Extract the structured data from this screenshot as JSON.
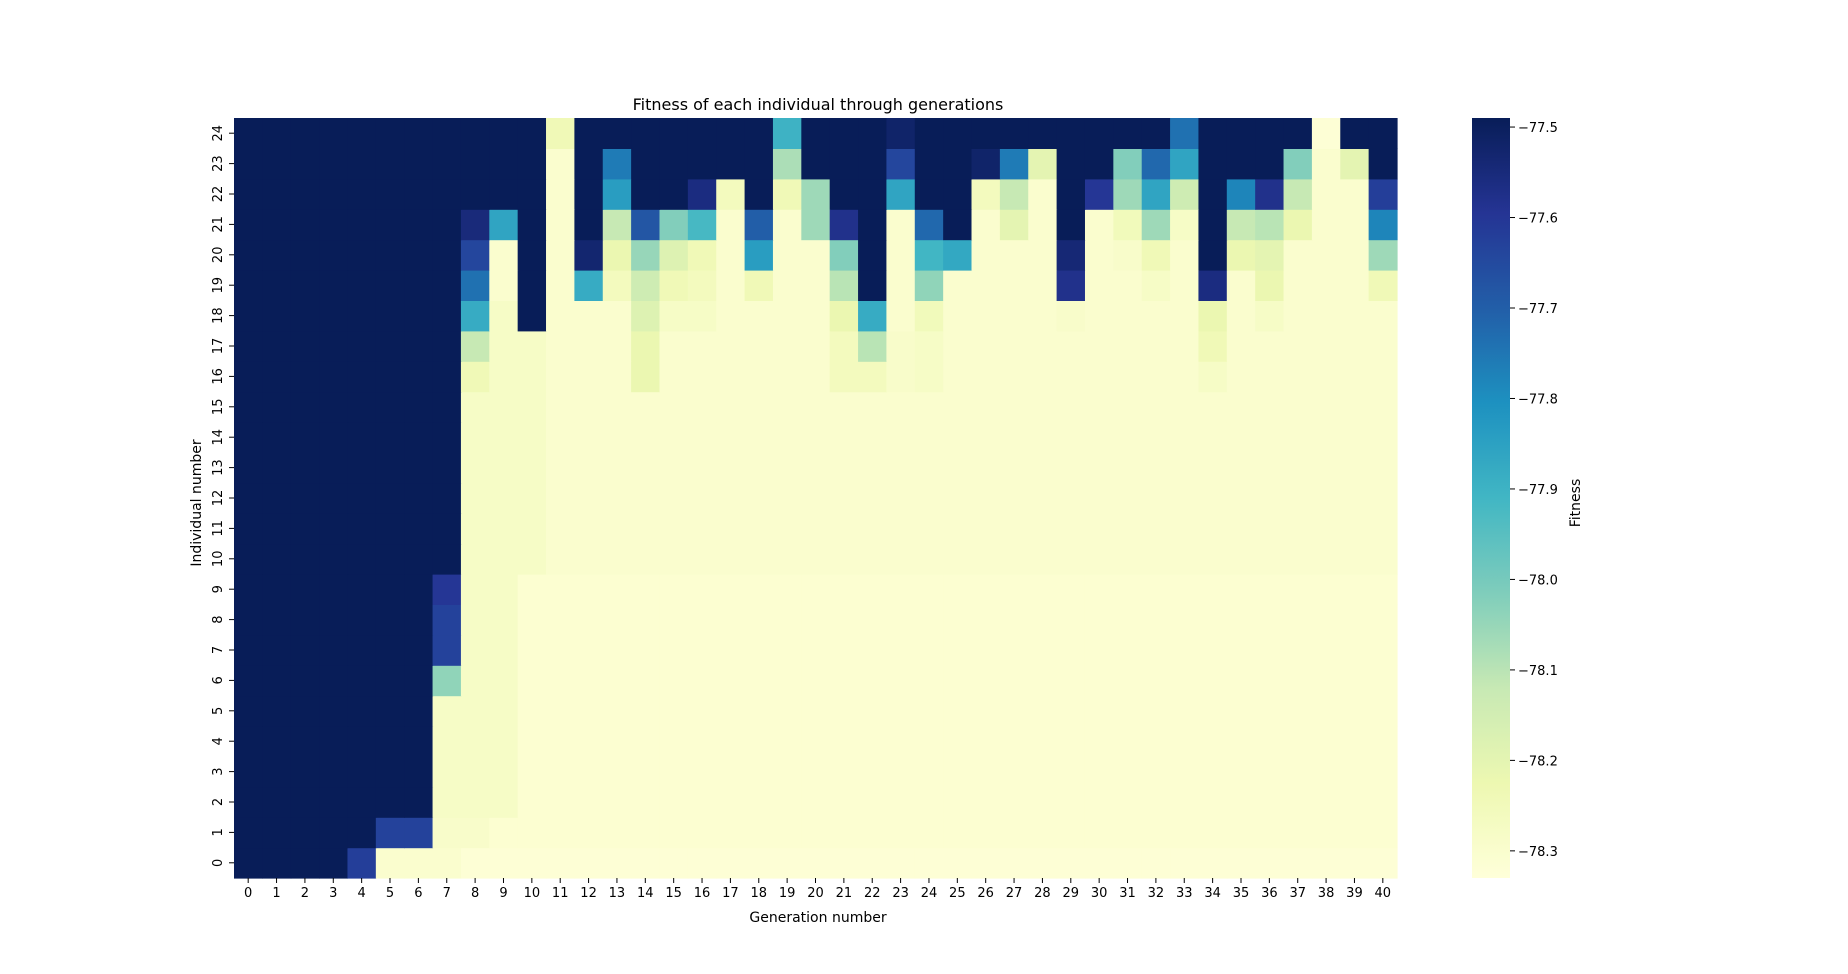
{
  "chart_data": {
    "type": "heatmap",
    "title": "Fitness of each individual through generations",
    "xlabel": "Generation number",
    "ylabel": "Individual number",
    "colorbar_label": "Fitness",
    "colormap": "YlGnBu",
    "vmin": -78.33,
    "vmax": -77.49,
    "colorbar_ticks": [
      "−77.5",
      "−77.6",
      "−77.7",
      "−77.8",
      "−77.9",
      "−78.0",
      "−78.1",
      "−78.2",
      "−78.3"
    ],
    "colorbar_tick_values": [
      -77.5,
      -77.6,
      -77.7,
      -77.8,
      -77.9,
      -78.0,
      -78.1,
      -78.2,
      -78.3
    ],
    "x_ticks": [
      "0",
      "1",
      "2",
      "3",
      "4",
      "5",
      "6",
      "7",
      "8",
      "9",
      "10",
      "11",
      "12",
      "13",
      "14",
      "15",
      "16",
      "17",
      "18",
      "19",
      "20",
      "21",
      "22",
      "23",
      "24",
      "25",
      "26",
      "27",
      "28",
      "29",
      "30",
      "31",
      "32",
      "33",
      "34",
      "35",
      "36",
      "37",
      "38",
      "39",
      "40"
    ],
    "y_ticks": [
      "0",
      "1",
      "2",
      "3",
      "4",
      "5",
      "6",
      "7",
      "8",
      "9",
      "10",
      "11",
      "12",
      "13",
      "14",
      "15",
      "16",
      "17",
      "18",
      "19",
      "20",
      "21",
      "22",
      "23",
      "24"
    ],
    "values": [
      [
        -77.49,
        -77.49,
        -77.49,
        -77.49,
        -77.62,
        -78.3,
        -78.3,
        -78.3,
        -78.32,
        -78.32,
        -78.32,
        -78.32,
        -78.32,
        -78.32,
        -78.32,
        -78.32,
        -78.32,
        -78.32,
        -78.32,
        -78.32,
        -78.32,
        -78.32,
        -78.32,
        -78.32,
        -78.32,
        -78.32,
        -78.32,
        -78.32,
        -78.32,
        -78.32,
        -78.32,
        -78.32,
        -78.32,
        -78.32,
        -78.32,
        -78.32,
        -78.32,
        -78.32,
        -78.32,
        -78.32,
        -78.32
      ],
      [
        -77.49,
        -77.49,
        -77.49,
        -77.49,
        -77.49,
        -77.63,
        -77.63,
        -78.29,
        -78.29,
        -78.31,
        -78.31,
        -78.31,
        -78.31,
        -78.31,
        -78.31,
        -78.31,
        -78.31,
        -78.31,
        -78.31,
        -78.31,
        -78.31,
        -78.31,
        -78.31,
        -78.31,
        -78.31,
        -78.31,
        -78.31,
        -78.31,
        -78.31,
        -78.31,
        -78.31,
        -78.31,
        -78.31,
        -78.31,
        -78.31,
        -78.31,
        -78.31,
        -78.31,
        -78.31,
        -78.31,
        -78.31
      ],
      [
        -77.49,
        -77.49,
        -77.49,
        -77.49,
        -77.49,
        -77.49,
        -77.49,
        -78.28,
        -78.28,
        -78.28,
        -78.31,
        -78.31,
        -78.31,
        -78.31,
        -78.31,
        -78.31,
        -78.31,
        -78.31,
        -78.31,
        -78.31,
        -78.31,
        -78.31,
        -78.31,
        -78.31,
        -78.31,
        -78.31,
        -78.31,
        -78.31,
        -78.31,
        -78.31,
        -78.31,
        -78.31,
        -78.31,
        -78.31,
        -78.31,
        -78.31,
        -78.31,
        -78.31,
        -78.31,
        -78.31,
        -78.31
      ],
      [
        -77.49,
        -77.49,
        -77.49,
        -77.49,
        -77.49,
        -77.49,
        -77.49,
        -78.28,
        -78.28,
        -78.28,
        -78.31,
        -78.31,
        -78.31,
        -78.31,
        -78.31,
        -78.31,
        -78.31,
        -78.31,
        -78.31,
        -78.31,
        -78.31,
        -78.31,
        -78.31,
        -78.31,
        -78.31,
        -78.31,
        -78.31,
        -78.31,
        -78.31,
        -78.31,
        -78.31,
        -78.31,
        -78.31,
        -78.31,
        -78.31,
        -78.31,
        -78.31,
        -78.31,
        -78.31,
        -78.31,
        -78.31
      ],
      [
        -77.49,
        -77.49,
        -77.49,
        -77.49,
        -77.49,
        -77.49,
        -77.49,
        -78.28,
        -78.28,
        -78.28,
        -78.31,
        -78.31,
        -78.31,
        -78.31,
        -78.31,
        -78.31,
        -78.31,
        -78.31,
        -78.31,
        -78.31,
        -78.31,
        -78.31,
        -78.31,
        -78.31,
        -78.31,
        -78.31,
        -78.31,
        -78.31,
        -78.31,
        -78.31,
        -78.31,
        -78.31,
        -78.31,
        -78.31,
        -78.31,
        -78.31,
        -78.31,
        -78.31,
        -78.31,
        -78.31,
        -78.31
      ],
      [
        -77.49,
        -77.49,
        -77.49,
        -77.49,
        -77.49,
        -77.49,
        -77.49,
        -78.28,
        -78.28,
        -78.28,
        -78.31,
        -78.31,
        -78.31,
        -78.31,
        -78.31,
        -78.31,
        -78.31,
        -78.31,
        -78.31,
        -78.31,
        -78.31,
        -78.31,
        -78.31,
        -78.31,
        -78.31,
        -78.31,
        -78.31,
        -78.31,
        -78.31,
        -78.31,
        -78.31,
        -78.31,
        -78.31,
        -78.31,
        -78.31,
        -78.31,
        -78.31,
        -78.31,
        -78.31,
        -78.31,
        -78.31
      ],
      [
        -77.49,
        -77.49,
        -77.49,
        -77.49,
        -77.49,
        -77.49,
        -77.49,
        -78.04,
        -78.28,
        -78.28,
        -78.31,
        -78.31,
        -78.31,
        -78.31,
        -78.31,
        -78.31,
        -78.31,
        -78.31,
        -78.31,
        -78.31,
        -78.31,
        -78.31,
        -78.31,
        -78.31,
        -78.31,
        -78.31,
        -78.31,
        -78.31,
        -78.31,
        -78.31,
        -78.31,
        -78.31,
        -78.31,
        -78.31,
        -78.31,
        -78.31,
        -78.31,
        -78.31,
        -78.31,
        -78.31,
        -78.31
      ],
      [
        -77.49,
        -77.49,
        -77.49,
        -77.49,
        -77.49,
        -77.49,
        -77.49,
        -77.63,
        -78.28,
        -78.28,
        -78.31,
        -78.31,
        -78.31,
        -78.31,
        -78.31,
        -78.31,
        -78.31,
        -78.31,
        -78.31,
        -78.31,
        -78.31,
        -78.31,
        -78.31,
        -78.31,
        -78.31,
        -78.31,
        -78.31,
        -78.31,
        -78.31,
        -78.31,
        -78.31,
        -78.31,
        -78.31,
        -78.31,
        -78.31,
        -78.31,
        -78.31,
        -78.31,
        -78.31,
        -78.31,
        -78.31
      ],
      [
        -77.49,
        -77.49,
        -77.49,
        -77.49,
        -77.49,
        -77.49,
        -77.49,
        -77.63,
        -78.28,
        -78.28,
        -78.31,
        -78.31,
        -78.31,
        -78.31,
        -78.31,
        -78.31,
        -78.31,
        -78.31,
        -78.31,
        -78.31,
        -78.31,
        -78.31,
        -78.31,
        -78.31,
        -78.31,
        -78.31,
        -78.31,
        -78.31,
        -78.31,
        -78.31,
        -78.31,
        -78.31,
        -78.31,
        -78.31,
        -78.31,
        -78.31,
        -78.31,
        -78.31,
        -78.31,
        -78.31,
        -78.31
      ],
      [
        -77.49,
        -77.49,
        -77.49,
        -77.49,
        -77.49,
        -77.49,
        -77.49,
        -77.6,
        -78.28,
        -78.28,
        -78.31,
        -78.31,
        -78.31,
        -78.31,
        -78.31,
        -78.31,
        -78.31,
        -78.31,
        -78.31,
        -78.31,
        -78.31,
        -78.31,
        -78.31,
        -78.31,
        -78.31,
        -78.31,
        -78.31,
        -78.31,
        -78.31,
        -78.31,
        -78.31,
        -78.31,
        -78.31,
        -78.31,
        -78.31,
        -78.31,
        -78.31,
        -78.31,
        -78.31,
        -78.31,
        -78.31
      ],
      [
        -77.49,
        -77.49,
        -77.49,
        -77.49,
        -77.49,
        -77.49,
        -77.49,
        -77.49,
        -78.28,
        -78.28,
        -78.28,
        -78.3,
        -78.3,
        -78.3,
        -78.3,
        -78.3,
        -78.3,
        -78.3,
        -78.3,
        -78.3,
        -78.3,
        -78.3,
        -78.3,
        -78.3,
        -78.3,
        -78.3,
        -78.3,
        -78.3,
        -78.3,
        -78.3,
        -78.3,
        -78.3,
        -78.3,
        -78.3,
        -78.3,
        -78.3,
        -78.3,
        -78.3,
        -78.3,
        -78.3,
        -78.3
      ],
      [
        -77.49,
        -77.49,
        -77.49,
        -77.49,
        -77.49,
        -77.49,
        -77.49,
        -77.49,
        -78.28,
        -78.28,
        -78.28,
        -78.3,
        -78.3,
        -78.3,
        -78.3,
        -78.3,
        -78.3,
        -78.3,
        -78.3,
        -78.3,
        -78.3,
        -78.3,
        -78.3,
        -78.3,
        -78.3,
        -78.3,
        -78.3,
        -78.3,
        -78.3,
        -78.3,
        -78.3,
        -78.3,
        -78.3,
        -78.3,
        -78.3,
        -78.3,
        -78.3,
        -78.3,
        -78.3,
        -78.3,
        -78.3
      ],
      [
        -77.49,
        -77.49,
        -77.49,
        -77.49,
        -77.49,
        -77.49,
        -77.49,
        -77.49,
        -78.28,
        -78.28,
        -78.28,
        -78.3,
        -78.3,
        -78.3,
        -78.3,
        -78.3,
        -78.3,
        -78.3,
        -78.3,
        -78.3,
        -78.3,
        -78.3,
        -78.3,
        -78.3,
        -78.3,
        -78.3,
        -78.3,
        -78.3,
        -78.3,
        -78.3,
        -78.3,
        -78.3,
        -78.3,
        -78.3,
        -78.3,
        -78.3,
        -78.3,
        -78.3,
        -78.3,
        -78.3,
        -78.3
      ],
      [
        -77.49,
        -77.49,
        -77.49,
        -77.49,
        -77.49,
        -77.49,
        -77.49,
        -77.49,
        -78.28,
        -78.28,
        -78.28,
        -78.3,
        -78.3,
        -78.3,
        -78.3,
        -78.3,
        -78.3,
        -78.3,
        -78.3,
        -78.3,
        -78.3,
        -78.3,
        -78.3,
        -78.3,
        -78.3,
        -78.3,
        -78.3,
        -78.3,
        -78.3,
        -78.3,
        -78.3,
        -78.3,
        -78.3,
        -78.3,
        -78.3,
        -78.3,
        -78.3,
        -78.3,
        -78.3,
        -78.3,
        -78.3
      ],
      [
        -77.49,
        -77.49,
        -77.49,
        -77.49,
        -77.49,
        -77.49,
        -77.49,
        -77.49,
        -78.28,
        -78.28,
        -78.28,
        -78.3,
        -78.3,
        -78.3,
        -78.3,
        -78.3,
        -78.3,
        -78.3,
        -78.3,
        -78.3,
        -78.3,
        -78.3,
        -78.3,
        -78.3,
        -78.3,
        -78.3,
        -78.3,
        -78.3,
        -78.3,
        -78.3,
        -78.3,
        -78.3,
        -78.3,
        -78.3,
        -78.3,
        -78.3,
        -78.3,
        -78.3,
        -78.3,
        -78.3,
        -78.3
      ],
      [
        -77.49,
        -77.49,
        -77.49,
        -77.49,
        -77.49,
        -77.49,
        -77.49,
        -77.49,
        -78.28,
        -78.28,
        -78.28,
        -78.3,
        -78.3,
        -78.3,
        -78.3,
        -78.3,
        -78.3,
        -78.3,
        -78.3,
        -78.3,
        -78.3,
        -78.3,
        -78.3,
        -78.3,
        -78.3,
        -78.3,
        -78.3,
        -78.3,
        -78.3,
        -78.3,
        -78.3,
        -78.3,
        -78.3,
        -78.3,
        -78.3,
        -78.3,
        -78.3,
        -78.3,
        -78.3,
        -78.3,
        -78.3
      ],
      [
        -77.49,
        -77.49,
        -77.49,
        -77.49,
        -77.49,
        -77.49,
        -77.49,
        -77.49,
        -78.24,
        -78.28,
        -78.28,
        -78.3,
        -78.3,
        -78.3,
        -78.22,
        -78.3,
        -78.3,
        -78.3,
        -78.3,
        -78.3,
        -78.3,
        -78.26,
        -78.26,
        -78.29,
        -78.28,
        -78.3,
        -78.3,
        -78.3,
        -78.3,
        -78.3,
        -78.3,
        -78.3,
        -78.3,
        -78.3,
        -78.28,
        -78.3,
        -78.3,
        -78.3,
        -78.3,
        -78.3,
        -78.3
      ],
      [
        -77.49,
        -77.49,
        -77.49,
        -77.49,
        -77.49,
        -77.49,
        -77.49,
        -77.49,
        -78.12,
        -78.28,
        -78.28,
        -78.3,
        -78.3,
        -78.3,
        -78.22,
        -78.3,
        -78.3,
        -78.3,
        -78.3,
        -78.3,
        -78.3,
        -78.26,
        -78.1,
        -78.29,
        -78.28,
        -78.3,
        -78.3,
        -78.3,
        -78.3,
        -78.3,
        -78.3,
        -78.3,
        -78.3,
        -78.3,
        -78.24,
        -78.3,
        -78.3,
        -78.3,
        -78.3,
        -78.3,
        -78.3
      ],
      [
        -77.49,
        -77.49,
        -77.49,
        -77.49,
        -77.49,
        -77.49,
        -77.49,
        -77.49,
        -77.88,
        -78.28,
        -77.49,
        -78.3,
        -78.3,
        -78.3,
        -78.18,
        -78.28,
        -78.28,
        -78.3,
        -78.3,
        -78.3,
        -78.3,
        -78.22,
        -77.88,
        -78.3,
        -78.25,
        -78.3,
        -78.3,
        -78.3,
        -78.3,
        -78.29,
        -78.3,
        -78.3,
        -78.3,
        -78.3,
        -78.22,
        -78.3,
        -78.28,
        -78.3,
        -78.3,
        -78.3,
        -78.3
      ],
      [
        -77.49,
        -77.49,
        -77.49,
        -77.49,
        -77.49,
        -77.49,
        -77.49,
        -77.49,
        -77.74,
        -78.3,
        -77.49,
        -78.3,
        -77.88,
        -78.26,
        -78.14,
        -78.24,
        -78.26,
        -78.3,
        -78.24,
        -78.3,
        -78.3,
        -78.1,
        -77.49,
        -78.3,
        -78.04,
        -78.3,
        -78.3,
        -78.3,
        -78.3,
        -77.58,
        -78.3,
        -78.3,
        -78.28,
        -78.3,
        -77.56,
        -78.3,
        -78.22,
        -78.3,
        -78.3,
        -78.3,
        -78.24
      ],
      [
        -77.49,
        -77.49,
        -77.49,
        -77.49,
        -77.49,
        -77.49,
        -77.49,
        -77.49,
        -77.64,
        -78.3,
        -77.49,
        -78.3,
        -77.53,
        -78.22,
        -78.05,
        -78.18,
        -78.24,
        -78.3,
        -77.84,
        -78.3,
        -78.3,
        -78.02,
        -77.49,
        -78.3,
        -77.91,
        -77.87,
        -78.3,
        -78.3,
        -78.3,
        -77.54,
        -78.3,
        -78.29,
        -78.24,
        -78.3,
        -77.49,
        -78.22,
        -78.2,
        -78.3,
        -78.3,
        -78.3,
        -78.06
      ],
      [
        -77.49,
        -77.49,
        -77.49,
        -77.49,
        -77.49,
        -77.49,
        -77.49,
        -77.49,
        -77.55,
        -77.86,
        -77.49,
        -78.3,
        -77.49,
        -78.12,
        -77.68,
        -78.02,
        -77.92,
        -78.3,
        -77.7,
        -78.3,
        -78.06,
        -77.58,
        -77.49,
        -78.3,
        -77.72,
        -77.49,
        -78.3,
        -78.2,
        -78.3,
        -77.49,
        -78.3,
        -78.25,
        -78.06,
        -78.28,
        -77.49,
        -78.12,
        -78.1,
        -78.22,
        -78.3,
        -78.3,
        -77.78
      ],
      [
        -77.49,
        -77.49,
        -77.49,
        -77.49,
        -77.49,
        -77.49,
        -77.49,
        -77.49,
        -77.49,
        -77.49,
        -77.49,
        -78.3,
        -77.49,
        -77.84,
        -77.49,
        -77.49,
        -77.56,
        -78.26,
        -77.49,
        -78.24,
        -78.06,
        -77.49,
        -77.49,
        -77.86,
        -77.49,
        -77.49,
        -78.26,
        -78.12,
        -78.3,
        -77.49,
        -77.6,
        -78.06,
        -77.86,
        -78.14,
        -77.49,
        -77.78,
        -77.58,
        -78.12,
        -78.3,
        -78.3,
        -77.62
      ],
      [
        -77.49,
        -77.49,
        -77.49,
        -77.49,
        -77.49,
        -77.49,
        -77.49,
        -77.49,
        -77.49,
        -77.49,
        -77.49,
        -78.3,
        -77.49,
        -77.76,
        -77.49,
        -77.49,
        -77.49,
        -77.49,
        -77.49,
        -78.08,
        -77.49,
        -77.49,
        -77.49,
        -77.64,
        -77.49,
        -77.49,
        -77.52,
        -77.76,
        -78.2,
        -77.49,
        -77.49,
        -78.02,
        -77.72,
        -77.86,
        -77.49,
        -77.49,
        -77.49,
        -78.02,
        -78.3,
        -78.2,
        -77.49
      ],
      [
        -77.49,
        -77.49,
        -77.49,
        -77.49,
        -77.49,
        -77.49,
        -77.49,
        -77.49,
        -77.49,
        -77.49,
        -77.49,
        -78.24,
        -77.49,
        -77.49,
        -77.49,
        -77.49,
        -77.49,
        -77.49,
        -77.49,
        -77.9,
        -77.49,
        -77.49,
        -77.49,
        -77.52,
        -77.49,
        -77.49,
        -77.49,
        -77.49,
        -77.49,
        -77.49,
        -77.49,
        -77.49,
        -77.49,
        -77.74,
        -77.49,
        -77.49,
        -77.49,
        -77.49,
        -78.32,
        -77.49,
        -77.49
      ]
    ]
  }
}
